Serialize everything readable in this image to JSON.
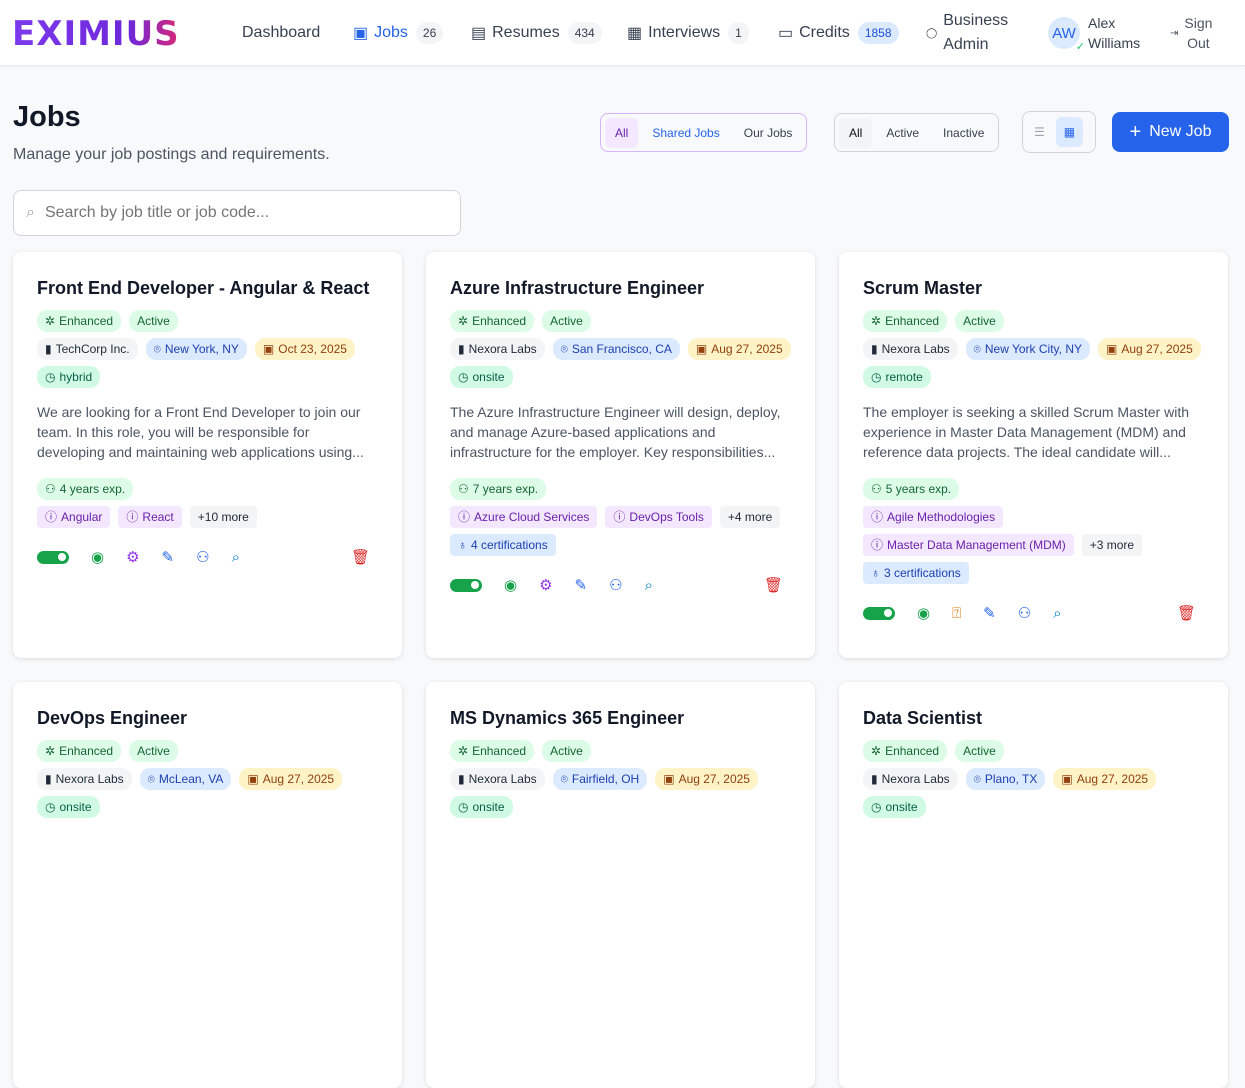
{
  "nav": {
    "logo": "EXIMIUS",
    "items": [
      {
        "label": "Dashboard",
        "icon": "none"
      },
      {
        "label": "Jobs",
        "count": "26",
        "icon": "briefcase-icon"
      },
      {
        "label": "Resumes",
        "count": "434",
        "icon": "document-icon"
      },
      {
        "label": "Interviews",
        "count": "1",
        "icon": "calendar-icon"
      },
      {
        "label": "Credits",
        "count": "1858",
        "icon": "credit-card-icon"
      }
    ],
    "admin_l1": "Business",
    "admin_l2": "Admin",
    "user_initials": "AW",
    "user_first": "Alex",
    "user_last": "Williams",
    "signout_l1": "Sign",
    "signout_l2": "Out"
  },
  "page": {
    "title": "Jobs",
    "subtitle": "Manage your job postings and requirements.",
    "scope": [
      "All",
      "Shared Jobs",
      "Our Jobs"
    ],
    "status": [
      "All",
      "Active",
      "Inactive"
    ],
    "new_job": "New Job",
    "search_placeholder": "Search by job title or job code..."
  },
  "colors": {
    "primary": "#2563eb",
    "enhanced": "#dcfce7",
    "skill": "#f3e8ff"
  },
  "jobs": [
    {
      "title": "Front End Developer - Angular & React",
      "enhanced": "Enhanced",
      "status": "Active",
      "company": "TechCorp Inc.",
      "location": "New York, NY",
      "date": "Oct 23, 2025",
      "mode": "hybrid",
      "desc": "We are looking for a Front End Developer to join our team. In this role, you will be responsible for developing and maintaining web applications using...",
      "exp": "4 years exp.",
      "skills": [
        "Angular",
        "React"
      ],
      "more": "+10 more",
      "certs": null,
      "action2": "settings"
    },
    {
      "title": "Azure Infrastructure Engineer",
      "enhanced": "Enhanced",
      "status": "Active",
      "company": "Nexora Labs",
      "location": "San Francisco, CA",
      "date": "Aug 27, 2025",
      "mode": "onsite",
      "desc": "The Azure Infrastructure Engineer will design, deploy, and manage Azure-based applications and infrastructure for the employer. Key responsibilities...",
      "exp": "7 years exp.",
      "skills": [
        "Azure Cloud Services",
        "DevOps Tools"
      ],
      "more": "+4 more",
      "certs": "4 certifications",
      "action2": "settings"
    },
    {
      "title": "Scrum Master",
      "enhanced": "Enhanced",
      "status": "Active",
      "company": "Nexora Labs",
      "location": "New York City, NY",
      "date": "Aug 27, 2025",
      "mode": "remote",
      "desc": "The employer is seeking a skilled Scrum Master with experience in Master Data Management (MDM) and reference data projects. The ideal candidate will...",
      "exp": "5 years exp.",
      "skills": [
        "Agile Methodologies",
        "Master Data Management (MDM)"
      ],
      "more": "+3 more",
      "certs": "3 certifications",
      "action2": "questions"
    },
    {
      "title": "DevOps Engineer",
      "enhanced": "Enhanced",
      "status": "Active",
      "company": "Nexora Labs",
      "location": "McLean, VA",
      "date": "Aug 27, 2025",
      "mode": "onsite"
    },
    {
      "title": "MS Dynamics 365 Engineer",
      "enhanced": "Enhanced",
      "status": "Active",
      "company": "Nexora Labs",
      "location": "Fairfield, OH",
      "date": "Aug 27, 2025",
      "mode": "onsite"
    },
    {
      "title": "Data Scientist",
      "enhanced": "Enhanced",
      "status": "Active",
      "company": "Nexora Labs",
      "location": "Plano, TX",
      "date": "Aug 27, 2025",
      "mode": "onsite"
    }
  ]
}
